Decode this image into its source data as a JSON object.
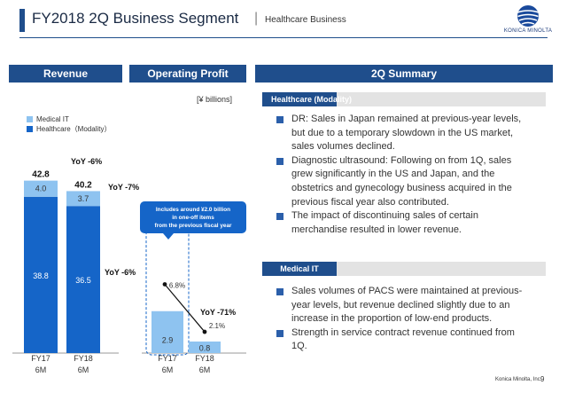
{
  "header": {
    "title": "FY2018 2Q Business Segment",
    "separator": "|",
    "subtitle": "Healthcare Business",
    "logo_text": "KONICA MINOLTA"
  },
  "panels": {
    "revenue": "Revenue",
    "operating_profit": "Operating Profit",
    "summary": "2Q Summary"
  },
  "unit": "[¥ billions]",
  "legend": [
    "Medical IT",
    "Healthcare（Modality）"
  ],
  "colors": {
    "accent": "#1f4e8c",
    "modality": "#1565c8",
    "medical_it": "#8ec3f0"
  },
  "callout": [
    "Includes around ¥2.0 billion",
    "in one-off items",
    "from the previous fiscal year"
  ],
  "chart_data": [
    {
      "type": "bar",
      "stacked": true,
      "panel": "Revenue",
      "categories": [
        [
          "FY17",
          "6M"
        ],
        [
          "FY18",
          "6M"
        ]
      ],
      "series": [
        {
          "name": "Healthcare（Modality）",
          "values": [
            38.8,
            36.5
          ]
        },
        {
          "name": "Medical IT",
          "values": [
            4.0,
            3.7
          ]
        }
      ],
      "totals": [
        "42.8",
        "40.2"
      ],
      "annotations": {
        "total_yoy": "YoY -6%",
        "modality_yoy": "YoY -6%",
        "medical_it_yoy": "YoY -7%"
      },
      "ylim": [
        0,
        48
      ]
    },
    {
      "type": "bar",
      "panel": "Operating Profit",
      "categories": [
        [
          "FY17",
          "6M"
        ],
        [
          "FY18",
          "6M"
        ]
      ],
      "values": [
        2.9,
        0.8
      ],
      "value_labels": [
        "2.9",
        "0.8"
      ],
      "margin_line": {
        "values": [
          6.8,
          2.1
        ],
        "labels": [
          "6.8%",
          "2.1%"
        ]
      },
      "annotations": {
        "yoy": "YoY -71%"
      },
      "ylim": [
        0,
        6.2
      ]
    }
  ],
  "healthcare": {
    "label": "Healthcare (Modality)",
    "bullets": [
      [
        "DR: Sales in Japan remained at previous-year levels,",
        "but due to a temporary slowdown in the US market,",
        "sales volumes declined."
      ],
      [
        "Diagnostic ultrasound: Following on from 1Q, sales",
        "grew significantly in the US and Japan, and the",
        "obstetrics and gynecology business acquired in the",
        "previous fiscal year also contributed."
      ],
      [
        "The impact of discontinuing sales of certain",
        "merchandise resulted in lower revenue."
      ]
    ]
  },
  "medical_it": {
    "label": "Medical IT",
    "bullets": [
      [
        "Sales volumes of PACS were maintained at previous-",
        "year levels, but revenue declined slightly due to an",
        "increase in the proportion of low-end products."
      ],
      [
        "Strength in service contract revenue continued from",
        "1Q."
      ]
    ]
  },
  "footer": {
    "company": "Konica Minolta, Inc.",
    "page": "9"
  }
}
